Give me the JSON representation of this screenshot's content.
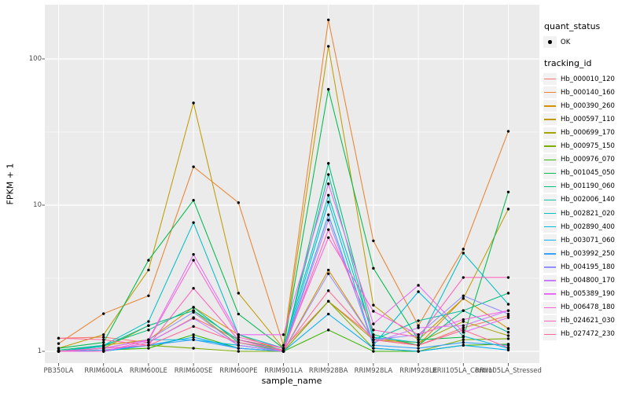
{
  "figure": {
    "background": "#FFFFFF",
    "panel_bg": "#EBEBEB",
    "grid_color": "#FFFFFF",
    "tick_color": "#333333",
    "axis_text_color": "#4D4D4D",
    "point_color": "#000000"
  },
  "y_axis": {
    "title": "FPKM + 1"
  },
  "x_axis": {
    "title": "sample_name"
  },
  "legend": {
    "quant_title": "quant_status",
    "quant_item_label": "OK",
    "quant_glyph": "black-point",
    "tracking_title": "tracking_id"
  },
  "chart_data": {
    "type": "line",
    "scale": "log10",
    "title": "",
    "xlabel": "sample_name",
    "ylabel": "FPKM + 1",
    "ylim": [
      1,
      200
    ],
    "y_major_ticks": [
      1,
      10,
      100
    ],
    "y_minor_ticks": [
      3.162,
      31.623
    ],
    "grid": true,
    "legend_position": "right",
    "quant_status": "OK",
    "point_color": "#000000",
    "categories": [
      "PB350LA",
      "RRIM600LA",
      "RRIM600LE",
      "RRIM600SE",
      "RRIM600PE",
      "RRIM901LA",
      "RRIM928BA",
      "RRIM928LA",
      "RRIM928LE",
      "RRII105LA_Control",
      "RRII105LA_Stressed"
    ],
    "series": [
      {
        "name": "Hb_000010_120",
        "color": "#F8766D",
        "values": [
          1.23,
          1.25,
          1.15,
          1.7,
          1.2,
          1.05,
          2.2,
          1.25,
          1.1,
          1.45,
          1.75
        ]
      },
      {
        "name": "Hb_000140_160",
        "color": "#EA8331",
        "values": [
          1.13,
          1.81,
          2.4,
          18.3,
          10.4,
          1.1,
          185,
          5.7,
          1.5,
          5.0,
          32.0
        ]
      },
      {
        "name": "Hb_000390_260",
        "color": "#D89000",
        "values": [
          1.0,
          1.1,
          1.2,
          2.0,
          1.3,
          1.0,
          3.6,
          1.2,
          1.1,
          2.3,
          1.43
        ]
      },
      {
        "name": "Hb_000597_110",
        "color": "#C09B00",
        "values": [
          1.05,
          1.3,
          3.6,
          50.0,
          2.5,
          1.05,
          122,
          2.07,
          1.2,
          2.3,
          9.4
        ]
      },
      {
        "name": "Hb_000699_170",
        "color": "#A3A500",
        "values": [
          1.0,
          1.05,
          1.5,
          1.9,
          1.1,
          1.0,
          2.2,
          1.2,
          1.15,
          1.6,
          1.28
        ]
      },
      {
        "name": "Hb_000975_150",
        "color": "#7CAE00",
        "values": [
          1.0,
          1.0,
          1.1,
          1.05,
          1.0,
          1.0,
          2.2,
          1.05,
          1.0,
          1.2,
          1.22
        ]
      },
      {
        "name": "Hb_000976_070",
        "color": "#39B600",
        "values": [
          1.0,
          1.02,
          1.05,
          1.3,
          1.05,
          1.0,
          1.4,
          1.0,
          1.0,
          1.1,
          1.12
        ]
      },
      {
        "name": "Hb_001045_050",
        "color": "#00BB4E",
        "values": [
          1.05,
          1.15,
          4.2,
          10.8,
          1.8,
          1.05,
          62.0,
          3.7,
          1.2,
          1.25,
          12.3
        ]
      },
      {
        "name": "Hb_001190_060",
        "color": "#00BF7D",
        "values": [
          1.02,
          1.1,
          1.4,
          2.0,
          1.15,
          1.0,
          19.3,
          1.3,
          1.1,
          1.9,
          2.5
        ]
      },
      {
        "name": "Hb_002006_140",
        "color": "#00C1A3",
        "values": [
          1.0,
          1.08,
          1.5,
          1.9,
          1.2,
          1.02,
          16.2,
          1.2,
          1.62,
          1.9,
          1.35
        ]
      },
      {
        "name": "Hb_002821_020",
        "color": "#00BFC4",
        "values": [
          1.0,
          1.1,
          1.6,
          7.6,
          1.3,
          1.05,
          11.7,
          1.25,
          1.15,
          4.7,
          2.1
        ]
      },
      {
        "name": "Hb_002890_400",
        "color": "#00BAE0",
        "values": [
          1.0,
          1.05,
          1.2,
          1.2,
          1.1,
          1.0,
          10.5,
          1.1,
          2.56,
          1.27,
          1.05
        ]
      },
      {
        "name": "Hb_003071_060",
        "color": "#00B0F6",
        "values": [
          1.0,
          1.0,
          1.1,
          1.25,
          1.05,
          1.0,
          1.8,
          1.05,
          1.0,
          1.1,
          1.02
        ]
      },
      {
        "name": "Hb_003992_250",
        "color": "#35A2FF",
        "values": [
          1.0,
          1.02,
          1.1,
          1.2,
          1.05,
          1.0,
          8.6,
          1.1,
          1.05,
          1.15,
          1.1
        ]
      },
      {
        "name": "Hb_004195_180",
        "color": "#9590FF",
        "values": [
          1.0,
          1.05,
          1.2,
          1.85,
          1.1,
          1.0,
          3.4,
          1.2,
          1.3,
          2.4,
          1.8
        ]
      },
      {
        "name": "Hb_004800_170",
        "color": "#C77CFF",
        "values": [
          1.0,
          1.0,
          1.15,
          1.68,
          1.1,
          1.0,
          7.9,
          1.15,
          1.45,
          1.5,
          1.9
        ]
      },
      {
        "name": "Hb_005389_190",
        "color": "#E76BF3",
        "values": [
          1.0,
          1.05,
          1.2,
          4.6,
          1.3,
          1.3,
          14.0,
          1.54,
          2.83,
          1.35,
          1.7
        ]
      },
      {
        "name": "Hb_006478_180",
        "color": "#FA62DB",
        "values": [
          1.0,
          1.0,
          1.19,
          4.2,
          1.25,
          1.05,
          6.0,
          1.88,
          1.3,
          1.65,
          1.9
        ]
      },
      {
        "name": "Hb_024621_030",
        "color": "#FF62BC",
        "values": [
          1.0,
          1.05,
          1.1,
          2.7,
          1.2,
          1.0,
          6.8,
          1.4,
          1.25,
          3.2,
          3.2
        ]
      },
      {
        "name": "Hb_027472_230",
        "color": "#FF6A98",
        "values": [
          1.23,
          1.2,
          1.1,
          1.48,
          1.15,
          1.02,
          2.6,
          1.2,
          1.1,
          1.4,
          1.06
        ]
      }
    ]
  }
}
